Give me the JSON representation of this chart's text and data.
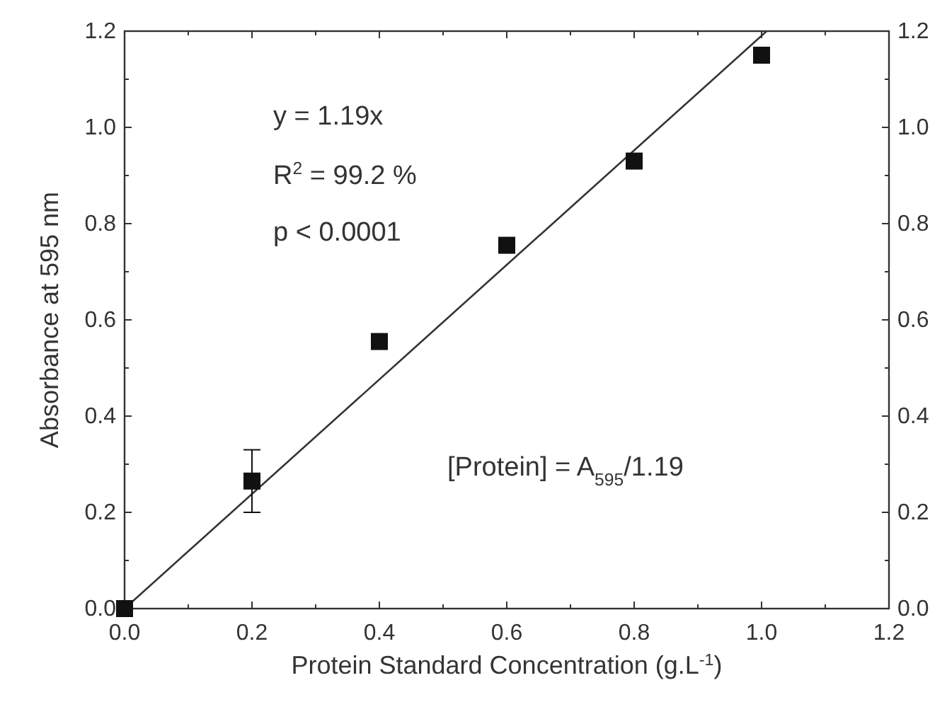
{
  "chart_data": {
    "type": "scatter",
    "xlabel": "Protein Standard Concentration (g.L$^{-1}$)",
    "ylabel": "Absorbance at 595 nm",
    "xlim": [
      0,
      1.2
    ],
    "ylim": [
      0,
      1.2
    ],
    "y2lim": [
      0,
      1.2
    ],
    "xticks": [
      {
        "value": 0,
        "label": "0.0"
      },
      {
        "value": 0.1,
        "label": null
      },
      {
        "value": 0.2,
        "label": "0.2"
      },
      {
        "value": 0.3,
        "label": null
      },
      {
        "value": 0.4,
        "label": "0.4"
      },
      {
        "value": 0.5,
        "label": null
      },
      {
        "value": 0.6,
        "label": "0.6"
      },
      {
        "value": 0.7,
        "label": null
      },
      {
        "value": 0.8,
        "label": "0.8"
      },
      {
        "value": 0.9,
        "label": null
      },
      {
        "value": 1,
        "label": "1.0"
      },
      {
        "value": 1.1,
        "label": null
      },
      {
        "value": 1.2,
        "label": "1.2"
      }
    ],
    "yticks": [
      {
        "value": 0,
        "label": "0.0"
      },
      {
        "value": 0.1,
        "label": null
      },
      {
        "value": 0.2,
        "label": "0.2"
      },
      {
        "value": 0.3,
        "label": null
      },
      {
        "value": 0.4,
        "label": "0.4"
      },
      {
        "value": 0.5,
        "label": null
      },
      {
        "value": 0.6,
        "label": "0.6"
      },
      {
        "value": 0.7,
        "label": null
      },
      {
        "value": 0.8,
        "label": "0.8"
      },
      {
        "value": 0.9,
        "label": null
      },
      {
        "value": 1,
        "label": "1.0"
      },
      {
        "value": 1.1,
        "label": null
      },
      {
        "value": 1.2,
        "label": "1.2"
      }
    ],
    "y2ticks": [
      {
        "value": 0,
        "label": "0.0"
      },
      {
        "value": 0.1,
        "label": null
      },
      {
        "value": 0.2,
        "label": "0.2"
      },
      {
        "value": 0.3,
        "label": null
      },
      {
        "value": 0.4,
        "label": "0.4"
      },
      {
        "value": 0.5,
        "label": null
      },
      {
        "value": 0.6,
        "label": "0.6"
      },
      {
        "value": 0.7,
        "label": null
      },
      {
        "value": 0.8,
        "label": "0.8"
      },
      {
        "value": 0.9,
        "label": null
      },
      {
        "value": 1,
        "label": "1.0"
      },
      {
        "value": 1.1,
        "label": null
      },
      {
        "value": 1.2,
        "label": "1.2"
      }
    ],
    "series": [
      {
        "color": "#111111",
        "marker": "square",
        "x": [
          0,
          0.2,
          0.4,
          0.6,
          0.8,
          1.0
        ],
        "values": [
          0,
          0.265,
          0.555,
          0.755,
          0.93,
          1.15
        ],
        "errors": [
          null,
          [
            0.2,
            0.33
          ],
          null,
          null,
          null,
          null
        ]
      },
      {
        "type": "line",
        "color": "#333333",
        "line_style": "solid",
        "x": [
          0,
          1.008
        ],
        "values": [
          0,
          1.2
        ]
      }
    ],
    "annotations": [
      "y = 1.19x",
      "R$^{2}$ = 99.2 %",
      "p < 0.0001",
      "[Protein] = A$_{595}$/1.19"
    ],
    "grid": false
  }
}
